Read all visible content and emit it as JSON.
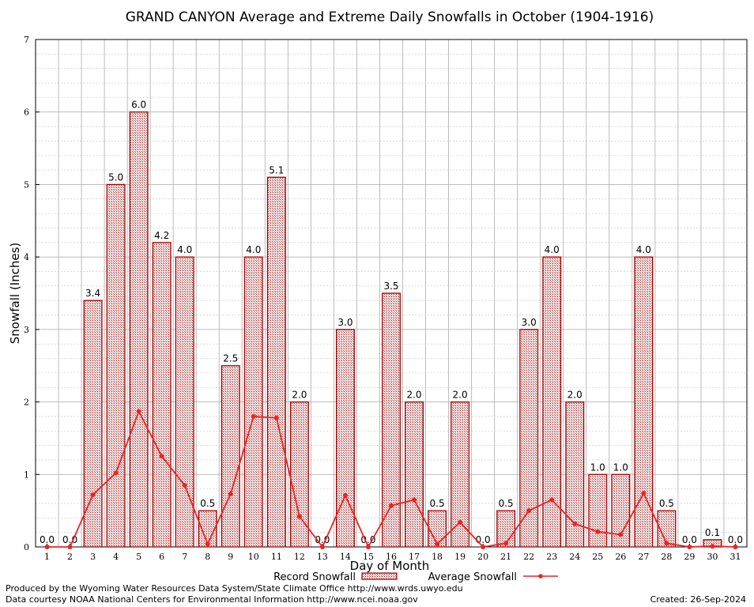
{
  "footer": {
    "produced_by": "Produced by the Wyoming Water Resources Data System/State Climate Office http://www.wrds.uwyo.edu",
    "courtesy": "Data courtesy NOAA National Centers for Environmental Information http://www.ncei.noaa.gov",
    "created": "Created:  26-Sep-2024"
  },
  "chart_data": {
    "type": "bar",
    "title": "GRAND CANYON Average and Extreme Daily Snowfalls in October (1904-1916)",
    "xlabel": "Day of Month",
    "ylabel": "Snowfall (Inches)",
    "ylim": [
      0,
      7
    ],
    "yticks": [
      0,
      1,
      2,
      3,
      4,
      5,
      6,
      7
    ],
    "grid": true,
    "legend_position": "bottom",
    "categories": [
      "1",
      "2",
      "3",
      "4",
      "5",
      "6",
      "7",
      "8",
      "9",
      "10",
      "11",
      "12",
      "13",
      "14",
      "15",
      "16",
      "17",
      "18",
      "19",
      "20",
      "21",
      "22",
      "23",
      "24",
      "25",
      "26",
      "27",
      "28",
      "29",
      "30",
      "31"
    ],
    "series": [
      {
        "name": "Record Snowfall",
        "kind": "bar",
        "color": "#aa0000",
        "values": [
          0.0,
          0.0,
          3.4,
          5.0,
          6.0,
          4.2,
          4.0,
          0.5,
          2.5,
          4.0,
          5.1,
          2.0,
          0.0,
          3.0,
          0.0,
          3.5,
          2.0,
          0.5,
          2.0,
          0.0,
          0.5,
          3.0,
          4.0,
          2.0,
          1.0,
          1.0,
          4.0,
          0.5,
          0.0,
          0.1,
          0.0
        ],
        "labels": [
          "0.0",
          "0.0",
          "3.4",
          "5.0",
          "6.0",
          "4.2",
          "4.0",
          "0.5",
          "2.5",
          "4.0",
          "5.1",
          "2.0",
          "0.0",
          "3.0",
          "0.0",
          "3.5",
          "2.0",
          "0.5",
          "2.0",
          "0.0",
          "0.5",
          "3.0",
          "4.0",
          "2.0",
          "1.0",
          "1.0",
          "4.0",
          "0.5",
          "0.0",
          "0.1",
          "0.0"
        ]
      },
      {
        "name": "Average Snowfall",
        "kind": "line",
        "color": "#ee2222",
        "values": [
          0.0,
          0.0,
          0.72,
          1.02,
          1.87,
          1.25,
          0.85,
          0.04,
          0.73,
          1.8,
          1.78,
          0.42,
          0.0,
          0.71,
          0.0,
          0.57,
          0.65,
          0.04,
          0.34,
          0.0,
          0.05,
          0.5,
          0.65,
          0.32,
          0.21,
          0.17,
          0.74,
          0.05,
          0.0,
          0.01,
          0.0
        ]
      }
    ]
  }
}
